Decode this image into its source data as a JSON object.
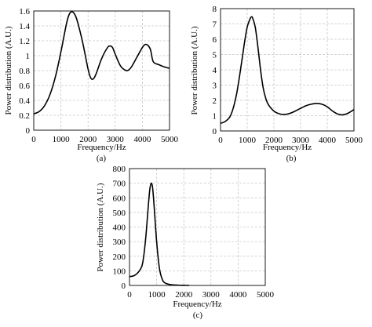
{
  "chart_data": [
    {
      "type": "line",
      "panel_label": "(a)",
      "xlabel": "Frequency/Hz",
      "ylabel": "Power distribution  (A.U.)",
      "xlim": [
        0,
        5000
      ],
      "ylim": [
        0,
        1.6
      ],
      "xticks": [
        "0",
        "1000",
        "2000",
        "3000",
        "4000",
        "5000"
      ],
      "yticks": [
        "0",
        "0.2",
        "0.4",
        "0.6",
        "0.8",
        "1",
        "1.2",
        "1.4",
        "1.6"
      ],
      "grid": true,
      "series": [
        {
          "x": [
            0,
            200,
            400,
            600,
            800,
            1000,
            1200,
            1300,
            1400,
            1500,
            1600,
            1800,
            2000,
            2100,
            2200,
            2300,
            2500,
            2700,
            2800,
            2900,
            3000,
            3200,
            3400,
            3500,
            3600,
            3800,
            4000,
            4100,
            4200,
            4300,
            4400,
            4600,
            4800,
            5000
          ],
          "y": [
            0.22,
            0.25,
            0.33,
            0.48,
            0.72,
            1.05,
            1.42,
            1.55,
            1.59,
            1.56,
            1.47,
            1.18,
            0.82,
            0.7,
            0.69,
            0.76,
            0.96,
            1.1,
            1.13,
            1.11,
            1.02,
            0.86,
            0.8,
            0.81,
            0.85,
            0.98,
            1.11,
            1.15,
            1.14,
            1.08,
            0.92,
            0.88,
            0.85,
            0.83
          ]
        }
      ]
    },
    {
      "type": "line",
      "panel_label": "(b)",
      "xlabel": "Frequency/Hz",
      "ylabel": "Power distribution  (A.U.)",
      "xlim": [
        0,
        5000
      ],
      "ylim": [
        0,
        8
      ],
      "xticks": [
        "0",
        "1000",
        "2000",
        "3000",
        "4000",
        "5000"
      ],
      "yticks": [
        "0",
        "1",
        "2",
        "3",
        "4",
        "5",
        "6",
        "7",
        "8"
      ],
      "grid": true,
      "series": [
        {
          "x": [
            0,
            200,
            400,
            600,
            800,
            900,
            1000,
            1100,
            1150,
            1200,
            1300,
            1400,
            1500,
            1600,
            1700,
            1800,
            2000,
            2200,
            2400,
            2600,
            2800,
            3000,
            3200,
            3400,
            3600,
            3800,
            4000,
            4200,
            4400,
            4600,
            4800,
            5000
          ],
          "y": [
            0.5,
            0.65,
            1.1,
            2.4,
            4.6,
            5.8,
            6.8,
            7.3,
            7.45,
            7.4,
            6.8,
            5.5,
            4.0,
            2.8,
            2.1,
            1.7,
            1.3,
            1.12,
            1.08,
            1.15,
            1.3,
            1.48,
            1.65,
            1.75,
            1.8,
            1.75,
            1.58,
            1.3,
            1.1,
            1.06,
            1.18,
            1.4
          ]
        }
      ]
    },
    {
      "type": "line",
      "panel_label": "(c)",
      "xlabel": "Frequency/Hz",
      "ylabel": "Power distribution  (A.U.)",
      "xlim": [
        0,
        5000
      ],
      "ylim": [
        0,
        800
      ],
      "xticks": [
        "0",
        "1000",
        "2000",
        "3000",
        "4000",
        "5000"
      ],
      "yticks": [
        "0",
        "100",
        "200",
        "300",
        "400",
        "500",
        "600",
        "700",
        "800"
      ],
      "grid": true,
      "series": [
        {
          "x": [
            0,
            200,
            400,
            500,
            600,
            700,
            750,
            800,
            850,
            900,
            1000,
            1100,
            1200,
            1300,
            1500,
            1800,
            2000,
            2200
          ],
          "y": [
            60,
            70,
            110,
            170,
            330,
            560,
            660,
            700,
            670,
            560,
            300,
            120,
            45,
            18,
            6,
            2,
            1,
            0
          ]
        }
      ]
    }
  ]
}
